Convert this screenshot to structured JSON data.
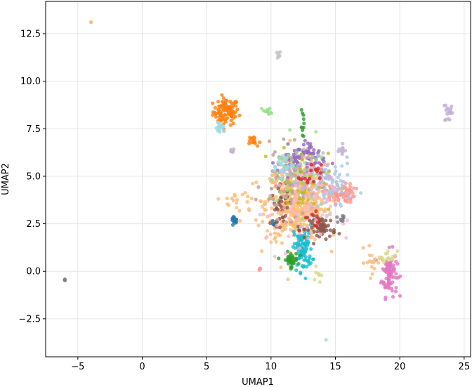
{
  "chart_data": {
    "type": "scatter",
    "title": "",
    "xlabel": "UMAP1",
    "ylabel": "UMAP2",
    "xlim": [
      -7.5,
      25.5
    ],
    "ylim": [
      -4.5,
      14.2
    ],
    "xticks": [
      -5,
      0,
      5,
      10,
      15,
      20,
      25
    ],
    "xtick_labels": [
      "−5",
      "0",
      "5",
      "10",
      "15",
      "20",
      "25"
    ],
    "yticks": [
      -2.5,
      0.0,
      2.5,
      5.0,
      7.5,
      10.0,
      12.5
    ],
    "ytick_labels": [
      "−2.5",
      "0.0",
      "2.5",
      "5.0",
      "7.5",
      "10.0",
      "12.5"
    ],
    "grid": true,
    "legend": "none",
    "marker_opacity": 0.8,
    "clusters": [
      {
        "color": "#ff7f0e",
        "cx": 6.5,
        "cy": 8.4,
        "sx": 0.5,
        "sy": 0.35,
        "n": 90
      },
      {
        "color": "#9edae5",
        "cx": 6.1,
        "cy": 7.5,
        "sx": 0.2,
        "sy": 0.15,
        "n": 15
      },
      {
        "color": "#c5b0d5",
        "cx": 23.8,
        "cy": 8.4,
        "sx": 0.15,
        "sy": 0.3,
        "n": 20
      },
      {
        "color": "#c7c7c7",
        "cx": 10.5,
        "cy": 11.4,
        "sx": 0.15,
        "sy": 0.1,
        "n": 12
      },
      {
        "color": "#ffbb78",
        "cx": -4.0,
        "cy": 13.1,
        "sx": 0.02,
        "sy": 0.02,
        "n": 2
      },
      {
        "color": "#7f7f7f",
        "cx": -6.0,
        "cy": -0.45,
        "sx": 0.03,
        "sy": 0.03,
        "n": 3
      },
      {
        "color": "#e377c2",
        "cx": 19.2,
        "cy": -0.1,
        "sx": 0.3,
        "sy": 0.6,
        "n": 90
      },
      {
        "color": "#dbdb8d",
        "cx": 19.0,
        "cy": 0.8,
        "sx": 0.4,
        "sy": 0.15,
        "n": 20
      },
      {
        "color": "#ffbb78",
        "cx": 12.0,
        "cy": 3.6,
        "sx": 1.2,
        "sy": 1.0,
        "n": 520
      },
      {
        "color": "#ff9896",
        "cx": 15.3,
        "cy": 4.1,
        "sx": 0.6,
        "sy": 0.25,
        "n": 90
      },
      {
        "color": "#17becf",
        "cx": 12.5,
        "cy": 1.2,
        "sx": 0.35,
        "sy": 0.6,
        "n": 100
      },
      {
        "color": "#2ca02c",
        "cx": 11.5,
        "cy": 0.6,
        "sx": 0.3,
        "sy": 0.2,
        "n": 40
      },
      {
        "color": "#2ca02c",
        "cx": 12.5,
        "cy": 7.6,
        "sx": 0.08,
        "sy": 0.4,
        "n": 12
      },
      {
        "color": "#1f77b4",
        "cx": 7.1,
        "cy": 2.7,
        "sx": 0.12,
        "sy": 0.1,
        "n": 15
      },
      {
        "color": "#1f77b4",
        "cx": 10.3,
        "cy": 2.5,
        "sx": 0.1,
        "sy": 0.1,
        "n": 6
      },
      {
        "color": "#8c564b",
        "cx": 14.0,
        "cy": 2.3,
        "sx": 0.5,
        "sy": 0.3,
        "n": 60
      },
      {
        "color": "#8c564b",
        "cx": 10.8,
        "cy": 3.4,
        "sx": 0.4,
        "sy": 0.5,
        "n": 35
      },
      {
        "color": "#9467bd",
        "cx": 12.3,
        "cy": 5.8,
        "sx": 0.9,
        "sy": 0.4,
        "n": 70
      },
      {
        "color": "#98df8a",
        "cx": 12.0,
        "cy": 5.0,
        "sx": 1.3,
        "sy": 0.9,
        "n": 60
      },
      {
        "color": "#aec7e8",
        "cx": 14.6,
        "cy": 4.4,
        "sx": 0.8,
        "sy": 0.7,
        "n": 70
      },
      {
        "color": "#c49c94",
        "cx": 11.5,
        "cy": 4.6,
        "sx": 1.1,
        "sy": 0.9,
        "n": 70
      },
      {
        "color": "#bcbd22",
        "cx": 12.6,
        "cy": 4.9,
        "sx": 1.0,
        "sy": 0.9,
        "n": 40
      },
      {
        "color": "#c5b0d5",
        "cx": 13.0,
        "cy": 5.2,
        "sx": 1.2,
        "sy": 0.8,
        "n": 50
      },
      {
        "color": "#f7b6d2",
        "cx": 12.2,
        "cy": 3.0,
        "sx": 1.3,
        "sy": 1.2,
        "n": 60
      },
      {
        "color": "#d62728",
        "cx": 13.1,
        "cy": 5.0,
        "sx": 0.4,
        "sy": 0.3,
        "n": 15
      },
      {
        "color": "#98df8a",
        "cx": 9.8,
        "cy": 8.4,
        "sx": 0.2,
        "sy": 0.1,
        "n": 12
      },
      {
        "color": "#c5b0d5",
        "cx": 7.0,
        "cy": 6.4,
        "sx": 0.1,
        "sy": 0.1,
        "n": 6
      },
      {
        "color": "#ff7f0e",
        "cx": 8.5,
        "cy": 6.8,
        "sx": 0.3,
        "sy": 0.15,
        "n": 15
      },
      {
        "color": "#7f7f7f",
        "cx": 15.5,
        "cy": 2.8,
        "sx": 0.2,
        "sy": 0.15,
        "n": 10
      },
      {
        "color": "#ffbb78",
        "cx": 17.9,
        "cy": 0.5,
        "sx": 0.3,
        "sy": 0.4,
        "n": 15
      },
      {
        "color": "#dbdb8d",
        "cx": 13.6,
        "cy": -0.1,
        "sx": 0.15,
        "sy": 0.25,
        "n": 8
      },
      {
        "color": "#ff9896",
        "cx": 9.1,
        "cy": 0.15,
        "sx": 0.05,
        "sy": 0.05,
        "n": 4
      },
      {
        "color": "#9edae5",
        "cx": 14.3,
        "cy": -3.6,
        "sx": 0.02,
        "sy": 0.02,
        "n": 1
      },
      {
        "color": "#d62728",
        "cx": 13.2,
        "cy": 2.6,
        "sx": 0.3,
        "sy": 0.3,
        "n": 10
      },
      {
        "color": "#9edae5",
        "cx": 10.9,
        "cy": 5.6,
        "sx": 0.4,
        "sy": 0.3,
        "n": 25
      },
      {
        "color": "#c5b0d5",
        "cx": 15.5,
        "cy": 6.4,
        "sx": 0.15,
        "sy": 0.15,
        "n": 8
      },
      {
        "color": "#ffbb78",
        "cx": 8.0,
        "cy": 3.6,
        "sx": 0.8,
        "sy": 0.4,
        "n": 20
      },
      {
        "color": "#9467bd",
        "cx": 12.6,
        "cy": 6.5,
        "sx": 0.5,
        "sy": 0.3,
        "n": 15
      }
    ]
  }
}
